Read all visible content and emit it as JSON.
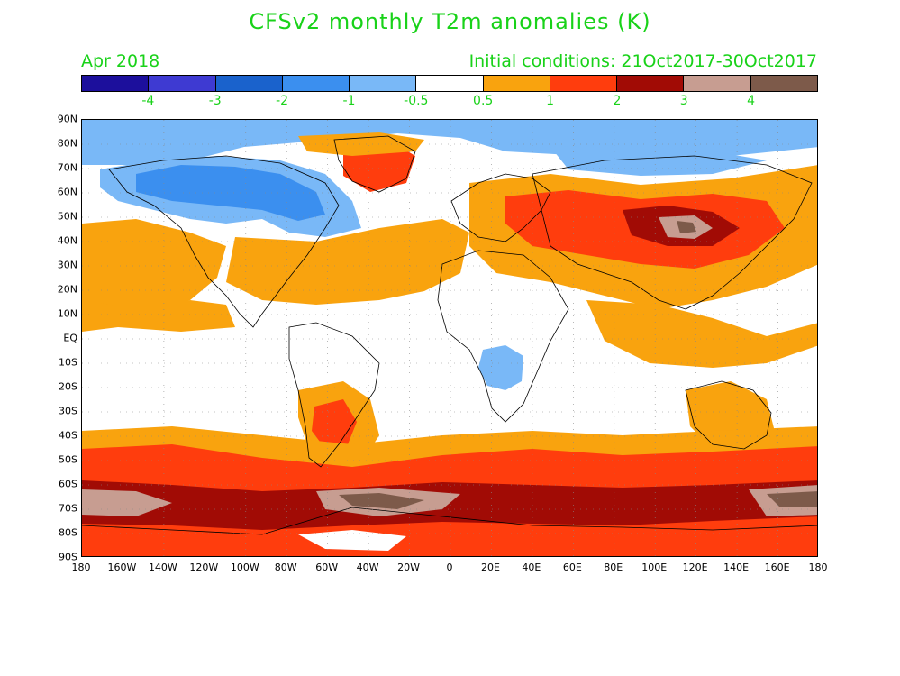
{
  "title": "CFSv2 monthly T2m anomalies (K)",
  "valid_month": "Apr 2018",
  "init_conditions": "Initial conditions: 21Oct2017-30Oct2017",
  "colorbar": {
    "colors": [
      "#1c0f9c",
      "#3e3ad2",
      "#1a62cc",
      "#3b8fef",
      "#79b8f7",
      "#ffffff",
      "#f9a30e",
      "#ff3d0d",
      "#a10b05",
      "#c79d91",
      "#7d5a4a"
    ],
    "labels": [
      "-4",
      "-3",
      "-2",
      "-1",
      "-0.5",
      "0.5",
      "1",
      "2",
      "3",
      "4"
    ]
  },
  "lat_labels": [
    "90N",
    "80N",
    "70N",
    "60N",
    "50N",
    "40N",
    "30N",
    "20N",
    "10N",
    "EQ",
    "10S",
    "20S",
    "30S",
    "40S",
    "50S",
    "60S",
    "70S",
    "80S",
    "90S"
  ],
  "lon_labels": [
    "180",
    "160W",
    "140W",
    "120W",
    "100W",
    "80W",
    "60W",
    "40W",
    "20W",
    "0",
    "20E",
    "40E",
    "60E",
    "80E",
    "100E",
    "120E",
    "140E",
    "160E",
    "180"
  ],
  "map_colors": {
    "warm1": "#f9a30e",
    "warm2": "#ff3d0d",
    "warm3": "#a10b05",
    "warm4": "#c79d91",
    "warm5": "#7d5a4a",
    "cool1": "#79b8f7",
    "cool2": "#3b8fef",
    "cool3": "#1a62cc",
    "land": "#000000"
  }
}
